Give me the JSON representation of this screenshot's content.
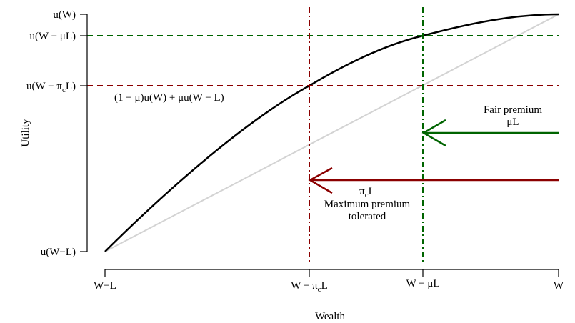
{
  "axes": {
    "xlabel": "Wealth",
    "ylabel": "Utility",
    "x_ticks": [
      {
        "id": "wl",
        "label": "W−L"
      },
      {
        "id": "wpc",
        "label": "W − π",
        "sub": "c",
        "tail": "L"
      },
      {
        "id": "wmu",
        "label": "W − μL"
      },
      {
        "id": "w",
        "label": "W"
      }
    ],
    "y_ticks": [
      {
        "id": "uw",
        "label": "u(W)"
      },
      {
        "id": "uwmu",
        "label": "u(W − μL)"
      },
      {
        "id": "uwpc",
        "label": "u(W − π",
        "sub": "c",
        "tail": "L)"
      },
      {
        "id": "uwl",
        "label": "u(W−L)"
      }
    ]
  },
  "annotations": {
    "expected_utility": "(1 − μ)u(W) + μu(W − L)",
    "fair_premium_title": "Fair premium",
    "fair_premium_value": "μL",
    "max_premium_value_main": "π",
    "max_premium_value_sub": "c",
    "max_premium_value_tail": "L",
    "max_premium_line1": "Maximum premium",
    "max_premium_line2": "tolerated"
  },
  "colors": {
    "utility_curve": "#000000",
    "chord": "#d3d3d3",
    "fair_premium": "#006400",
    "max_premium": "#8b0000"
  }
}
